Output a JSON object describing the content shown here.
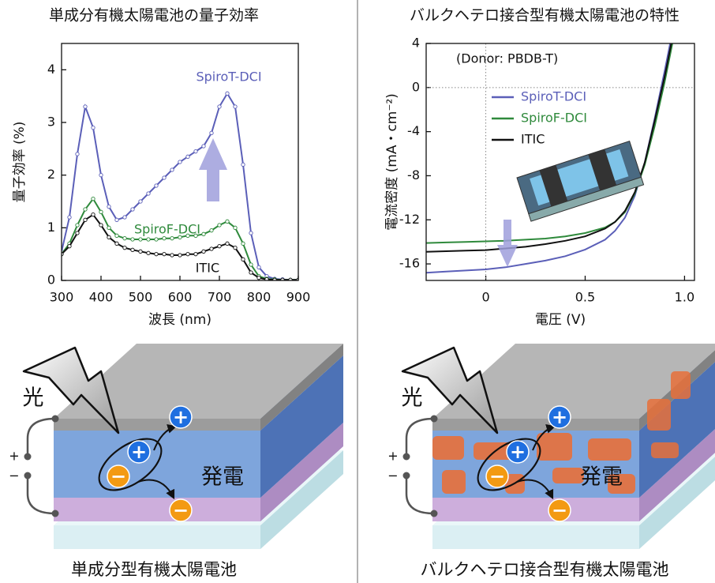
{
  "chart_data": [
    {
      "type": "line",
      "title": "単成分有機太陽電池の量子効率",
      "xlabel": "波長 (nm)",
      "ylabel": "量子効率 (%)",
      "x": [
        300,
        320,
        340,
        360,
        380,
        400,
        420,
        440,
        460,
        480,
        500,
        520,
        540,
        560,
        580,
        600,
        620,
        640,
        660,
        680,
        700,
        720,
        740,
        760,
        780,
        800,
        820,
        840,
        860,
        880,
        900
      ],
      "series": [
        {
          "name": "SpiroT-DCI",
          "color": "#5b5fb8",
          "values": [
            0.55,
            1.2,
            2.4,
            3.3,
            2.9,
            2.0,
            1.4,
            1.15,
            1.2,
            1.35,
            1.5,
            1.65,
            1.8,
            1.95,
            2.1,
            2.25,
            2.35,
            2.45,
            2.55,
            2.8,
            3.3,
            3.55,
            3.3,
            2.2,
            0.9,
            0.25,
            0.08,
            0.03,
            0.02,
            0.01,
            0.01
          ]
        },
        {
          "name": "SpiroF-DCI",
          "color": "#2f8a3c",
          "values": [
            0.5,
            0.7,
            1.05,
            1.35,
            1.55,
            1.3,
            1.0,
            0.85,
            0.8,
            0.78,
            0.78,
            0.78,
            0.78,
            0.8,
            0.8,
            0.82,
            0.85,
            0.85,
            0.88,
            0.95,
            1.05,
            1.12,
            1.0,
            0.7,
            0.3,
            0.08,
            0.03,
            0.02,
            0.01,
            0.01,
            0.01
          ]
        },
        {
          "name": "ITIC",
          "color": "#111111",
          "values": [
            0.5,
            0.65,
            0.9,
            1.15,
            1.25,
            1.05,
            0.82,
            0.7,
            0.62,
            0.58,
            0.55,
            0.52,
            0.5,
            0.5,
            0.48,
            0.48,
            0.5,
            0.5,
            0.55,
            0.6,
            0.65,
            0.7,
            0.62,
            0.4,
            0.15,
            0.05,
            0.02,
            0.01,
            0.01,
            0.01,
            0.01
          ]
        }
      ],
      "xlim": [
        300,
        900
      ],
      "xticks": [
        300,
        400,
        500,
        600,
        700,
        800,
        900
      ],
      "ylim": [
        0,
        4.5
      ],
      "yticks": [
        0,
        1,
        2,
        3,
        4
      ],
      "markers": true
    },
    {
      "type": "line",
      "title": "バルクヘテロ接合型有機太陽電池の特性",
      "xlabel": "電圧 (V)",
      "ylabel": "電流密度 (mA・cm⁻²)",
      "annotation": "(Donor: PBDB-T)",
      "x": [
        -0.3,
        -0.2,
        -0.1,
        0,
        0.1,
        0.2,
        0.3,
        0.4,
        0.5,
        0.6,
        0.65,
        0.7,
        0.75,
        0.8,
        0.85,
        0.9,
        0.95,
        1.0
      ],
      "series": [
        {
          "name": "SpiroT-DCI",
          "color": "#5b5fb8",
          "values": [
            -16.8,
            -16.7,
            -16.6,
            -16.5,
            -16.3,
            -16.0,
            -15.7,
            -15.3,
            -14.7,
            -13.8,
            -13.0,
            -11.8,
            -9.8,
            -6.8,
            -2.8,
            1.5,
            6,
            12
          ]
        },
        {
          "name": "SpiroF-DCI",
          "color": "#2f8a3c",
          "values": [
            -14.1,
            -14.05,
            -14.0,
            -13.95,
            -13.9,
            -13.8,
            -13.7,
            -13.5,
            -13.2,
            -12.7,
            -12.2,
            -11.3,
            -9.6,
            -7.0,
            -3.5,
            0.5,
            5,
            10
          ]
        },
        {
          "name": "ITIC",
          "color": "#111111",
          "values": [
            -14.9,
            -14.85,
            -14.8,
            -14.75,
            -14.6,
            -14.45,
            -14.2,
            -13.9,
            -13.5,
            -12.8,
            -12.2,
            -11.2,
            -9.5,
            -6.8,
            -3.0,
            1.0,
            5.5,
            11
          ]
        }
      ],
      "xlim": [
        -0.3,
        1.05
      ],
      "xticks": [
        0,
        0.5,
        {
          "value": 1,
          "label": "1.0"
        }
      ],
      "ylim": [
        -17.5,
        4
      ],
      "yticks": [
        -16,
        -12,
        -8,
        -4,
        0,
        4
      ],
      "legend": "upper left",
      "zero_lines": true
    }
  ],
  "diagrams": [
    {
      "caption": "単成分型有機太陽電池",
      "light": "光",
      "power": "発電",
      "plus": "+",
      "minus": "−"
    },
    {
      "caption": "バルクヘテロ接合型有機太陽電池",
      "light": "光",
      "power": "発電",
      "plus": "+",
      "minus": "−"
    }
  ]
}
